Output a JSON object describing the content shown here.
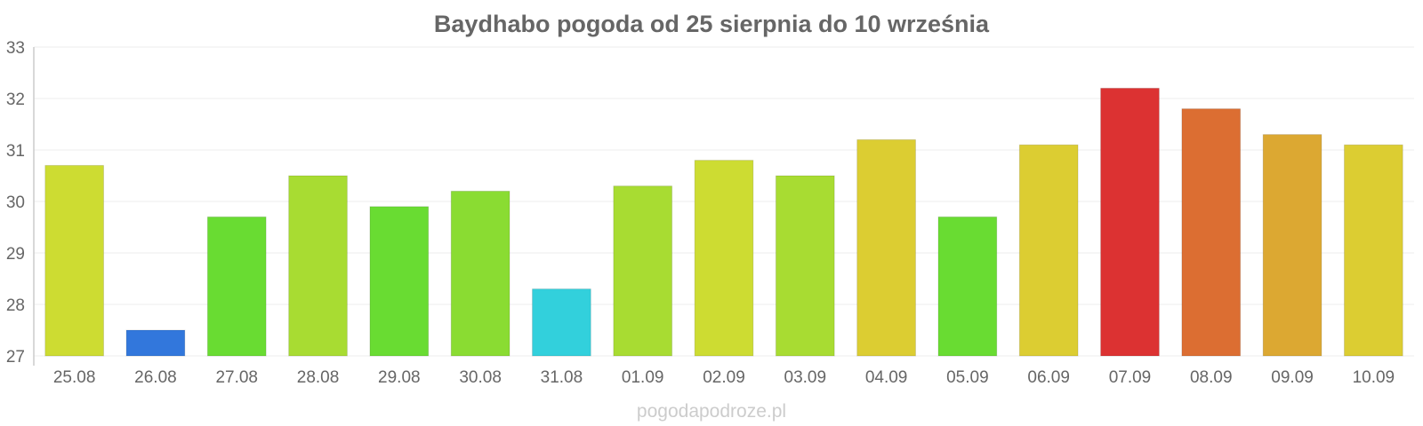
{
  "chart_data": {
    "type": "bar",
    "title": "Baydhabo pogoda od 25 sierpnia do 10 września",
    "categories": [
      "25.08",
      "26.08",
      "27.08",
      "28.08",
      "29.08",
      "30.08",
      "31.08",
      "01.09",
      "02.09",
      "03.09",
      "04.09",
      "05.09",
      "06.09",
      "07.09",
      "08.09",
      "09.09",
      "10.09"
    ],
    "values": [
      30.7,
      27.5,
      29.7,
      30.5,
      29.9,
      30.2,
      28.3,
      30.3,
      30.8,
      30.5,
      31.2,
      29.7,
      31.1,
      32.2,
      31.8,
      31.3,
      31.1
    ],
    "colors": [
      "#cddc32",
      "#3277dc",
      "#69dc32",
      "#a8dc32",
      "#69dc32",
      "#8adc32",
      "#32d0dc",
      "#a8dc32",
      "#cddc32",
      "#a8dc32",
      "#dccd32",
      "#69dc32",
      "#dccd32",
      "#dc3232",
      "#dc6e32",
      "#dca832",
      "#dccd32"
    ],
    "ylim": [
      27,
      33
    ],
    "yticks": [
      27,
      28,
      29,
      30,
      31,
      32,
      33
    ],
    "xlabel": "",
    "ylabel": "",
    "grid": true,
    "legend": "none"
  },
  "credit": "pogodapodroze.pl"
}
